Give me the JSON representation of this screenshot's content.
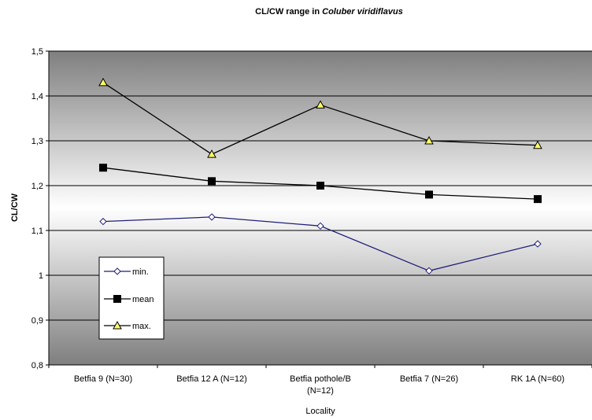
{
  "chart_data": {
    "type": "line",
    "title_prefix": "CL/CW range in ",
    "title_species": "Coluber viridiflavus",
    "xlabel": "Locality",
    "ylabel": "CL/CW",
    "categories": [
      [
        "Betfia 9 (N=30)"
      ],
      [
        "Betfia 12 A (N=12)"
      ],
      [
        "Betfia pothole/B",
        "(N=12)"
      ],
      [
        "Betfia 7 (N=26)"
      ],
      [
        "RK 1A (N=60)"
      ]
    ],
    "ylim": [
      0.8,
      1.5
    ],
    "yticks": [
      0.8,
      0.9,
      1.0,
      1.1,
      1.2,
      1.3,
      1.4,
      1.5
    ],
    "ytick_labels": [
      "0,8",
      "0,9",
      "1",
      "1,1",
      "1,2",
      "1,3",
      "1,4",
      "1,5"
    ],
    "grid": true,
    "legend_position": "left",
    "series": [
      {
        "name": "min.",
        "values": [
          1.12,
          1.13,
          1.11,
          1.01,
          1.07
        ],
        "color": "#1f1f7a",
        "marker": "diamond",
        "marker_fill": "#ffffff"
      },
      {
        "name": "mean",
        "values": [
          1.24,
          1.21,
          1.2,
          1.18,
          1.17
        ],
        "color": "#000000",
        "marker": "square",
        "marker_fill": "#000000"
      },
      {
        "name": "max.",
        "values": [
          1.43,
          1.27,
          1.38,
          1.3,
          1.29
        ],
        "color": "#000000",
        "marker": "triangle",
        "marker_fill": "#ffff66"
      }
    ]
  }
}
